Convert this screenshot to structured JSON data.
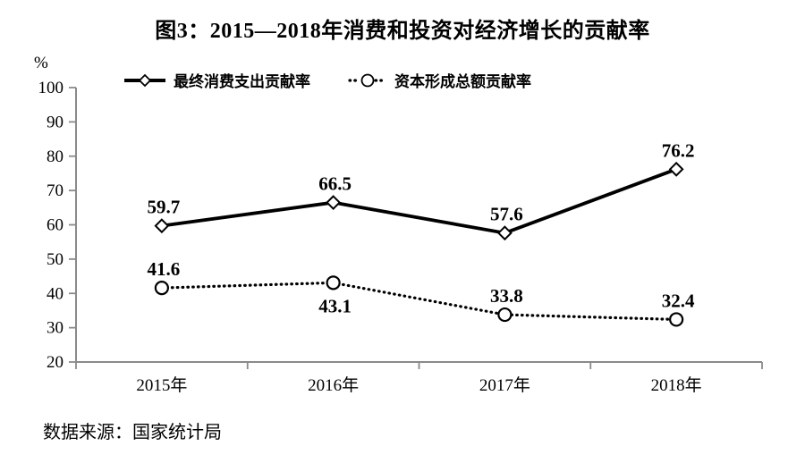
{
  "title": "图3：2015—2018年消费和投资对经济增长的贡献率",
  "y_axis_unit": "%",
  "source": "数据来源：国家统计局",
  "legend": [
    {
      "label": "最终消费支出贡献率",
      "marker": "diamond",
      "line_style": "solid"
    },
    {
      "label": "资本形成总额贡献率",
      "marker": "circle",
      "line_style": "dotted"
    }
  ],
  "colors": {
    "series": "#000000",
    "axis": "#8a8a8a",
    "marker_fill": "#ffffff",
    "text": "#000000",
    "background": "#ffffff"
  },
  "chart_data": {
    "type": "line",
    "title": "图3：2015—2018年消费和投资对经济增长的贡献率",
    "xlabel": "",
    "ylabel": "%",
    "categories": [
      "2015年",
      "2016年",
      "2017年",
      "2018年"
    ],
    "series": [
      {
        "name": "最终消费支出贡献率",
        "values": [
          59.7,
          66.5,
          57.6,
          76.2
        ],
        "style": "solid",
        "marker": "diamond",
        "label_positions": [
          "above",
          "above",
          "above",
          "above"
        ]
      },
      {
        "name": "资本形成总额贡献率",
        "values": [
          41.6,
          43.1,
          33.8,
          32.4
        ],
        "style": "dotted",
        "marker": "circle",
        "label_positions": [
          "above",
          "below",
          "above",
          "above"
        ]
      }
    ],
    "ylim": [
      20,
      100
    ],
    "ytick_step": 10,
    "grid": false,
    "legend_position": "top"
  }
}
